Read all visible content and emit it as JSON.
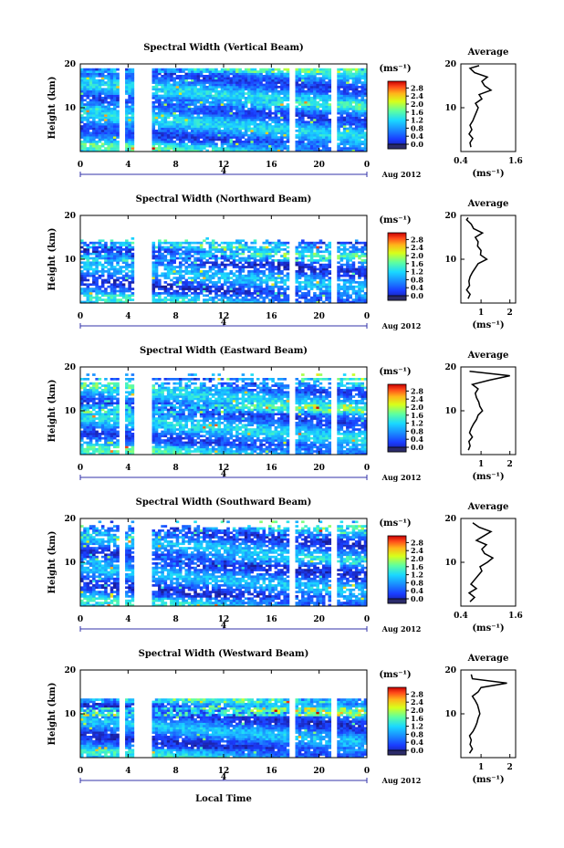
{
  "figure": {
    "date_label": "Aug 2012",
    "xlabel": "Local Time",
    "ylabel": "Height (km)",
    "average_title": "Average",
    "cbar_unit_label": "(ms⁻¹)",
    "avg_unit_label": "(ms⁻¹)",
    "day_mark_label": "4"
  },
  "chart_data": [
    {
      "type": "heatmap",
      "title": "Spectral Width (Vertical Beam)",
      "x_ticks": [
        "0",
        "4",
        "8",
        "12",
        "16",
        "20",
        "0"
      ],
      "y_ticks": [
        "10",
        "20"
      ],
      "colorbar_ticks": [
        "0.0",
        "0.4",
        "0.8",
        "1.2",
        "1.6",
        "2.0",
        "2.4",
        "2.8"
      ],
      "clim": [
        0.0,
        3.0
      ],
      "top_km": 19.2,
      "top_ragged": false,
      "base": 0.25,
      "speckle": 0.06,
      "vert_band": 0.05,
      "gaps": [
        [
          3.3,
          3.7
        ],
        [
          4.6,
          6.1
        ],
        [
          17.6,
          18.1
        ],
        [
          21.1,
          21.5
        ]
      ],
      "average": {
        "xlim": [
          0.4,
          1.6
        ],
        "x_ticks": [
          "0.4",
          "1.6"
        ],
        "y_ticks": [
          "10",
          "20"
        ],
        "profile": [
          [
            0.62,
            1
          ],
          [
            0.6,
            2
          ],
          [
            0.66,
            3
          ],
          [
            0.58,
            4
          ],
          [
            0.64,
            5
          ],
          [
            0.6,
            6
          ],
          [
            0.66,
            7
          ],
          [
            0.7,
            8
          ],
          [
            0.74,
            9
          ],
          [
            0.78,
            10
          ],
          [
            0.72,
            11
          ],
          [
            0.86,
            12
          ],
          [
            0.8,
            13
          ],
          [
            1.06,
            14
          ],
          [
            0.92,
            15
          ],
          [
            0.86,
            16
          ],
          [
            0.98,
            17
          ],
          [
            0.7,
            18
          ],
          [
            0.6,
            19
          ],
          [
            0.8,
            19.6
          ]
        ]
      }
    },
    {
      "type": "heatmap",
      "title": "Spectral Width (Northward Beam)",
      "x_ticks": [
        "0",
        "4",
        "8",
        "12",
        "16",
        "20",
        "0"
      ],
      "y_ticks": [
        "10",
        "20"
      ],
      "colorbar_ticks": [
        "0.0",
        "0.4",
        "0.8",
        "1.2",
        "1.6",
        "2.0",
        "2.4",
        "2.8"
      ],
      "clim": [
        0.0,
        3.0
      ],
      "top_km": 14.5,
      "top_ragged": true,
      "base": 0.2,
      "speckle": 0.22,
      "vert_band": 0.1,
      "gaps": [
        [
          4.6,
          6.1
        ],
        [
          17.6,
          18.1
        ],
        [
          21.1,
          21.5
        ]
      ],
      "average": {
        "xlim": [
          0.3,
          2.2
        ],
        "x_ticks": [
          "1",
          "2"
        ],
        "y_ticks": [
          "10",
          "20"
        ],
        "profile": [
          [
            0.55,
            1
          ],
          [
            0.62,
            2
          ],
          [
            0.5,
            3
          ],
          [
            0.6,
            4
          ],
          [
            0.58,
            5
          ],
          [
            0.62,
            6
          ],
          [
            0.7,
            7
          ],
          [
            0.8,
            8
          ],
          [
            0.9,
            9
          ],
          [
            1.2,
            10
          ],
          [
            0.98,
            11
          ],
          [
            1.0,
            12
          ],
          [
            0.88,
            13
          ],
          [
            0.9,
            14
          ],
          [
            0.8,
            15
          ],
          [
            1.05,
            16
          ],
          [
            0.74,
            17
          ],
          [
            0.66,
            18
          ],
          [
            0.5,
            19
          ],
          [
            0.55,
            19.5
          ]
        ]
      }
    },
    {
      "type": "heatmap",
      "title": "Spectral Width (Eastward Beam)",
      "x_ticks": [
        "0",
        "4",
        "8",
        "12",
        "16",
        "20",
        "0"
      ],
      "y_ticks": [
        "10",
        "20"
      ],
      "colorbar_ticks": [
        "0.0",
        "0.4",
        "0.8",
        "1.2",
        "1.6",
        "2.0",
        "2.4",
        "2.8"
      ],
      "clim": [
        0.0,
        3.0
      ],
      "top_km": 17.3,
      "top_ragged": true,
      "base": 0.25,
      "speckle": 0.12,
      "vert_band": 0.1,
      "gaps": [
        [
          3.3,
          3.7
        ],
        [
          4.6,
          6.1
        ],
        [
          17.6,
          18.1
        ],
        [
          21.1,
          21.5
        ]
      ],
      "average": {
        "xlim": [
          0.3,
          2.2
        ],
        "x_ticks": [
          "1",
          "2"
        ],
        "y_ticks": [
          "10",
          "20"
        ],
        "profile": [
          [
            0.56,
            1
          ],
          [
            0.62,
            2
          ],
          [
            0.58,
            3
          ],
          [
            0.7,
            4
          ],
          [
            0.6,
            5
          ],
          [
            0.66,
            6
          ],
          [
            0.74,
            7
          ],
          [
            0.84,
            8
          ],
          [
            0.9,
            9
          ],
          [
            1.05,
            10
          ],
          [
            0.96,
            11
          ],
          [
            0.92,
            12
          ],
          [
            0.84,
            13
          ],
          [
            0.8,
            14
          ],
          [
            0.9,
            15
          ],
          [
            0.7,
            16
          ],
          [
            1.3,
            17
          ],
          [
            2.0,
            18
          ],
          [
            0.6,
            19
          ]
        ]
      }
    },
    {
      "type": "heatmap",
      "title": "Spectral Width (Southward Beam)",
      "x_ticks": [
        "0",
        "4",
        "8",
        "12",
        "16",
        "20",
        "0"
      ],
      "y_ticks": [
        "10",
        "20"
      ],
      "colorbar_ticks": [
        "0.0",
        "0.4",
        "0.8",
        "1.2",
        "1.6",
        "2.0",
        "2.4",
        "2.8"
      ],
      "clim": [
        0.0,
        3.0
      ],
      "top_km": 18.0,
      "top_ragged": true,
      "base": 0.2,
      "speckle": 0.16,
      "vert_band": 0.05,
      "gaps": [
        [
          3.3,
          3.7
        ],
        [
          4.6,
          6.1
        ],
        [
          17.6,
          18.1
        ],
        [
          21.1,
          21.5
        ]
      ],
      "average": {
        "xlim": [
          0.4,
          1.6
        ],
        "x_ticks": [
          "0.4",
          "1.6"
        ],
        "y_ticks": [
          "10",
          "20"
        ],
        "profile": [
          [
            0.6,
            1
          ],
          [
            0.7,
            2
          ],
          [
            0.58,
            3
          ],
          [
            0.74,
            4
          ],
          [
            0.62,
            5
          ],
          [
            0.7,
            6
          ],
          [
            0.78,
            7
          ],
          [
            0.86,
            8
          ],
          [
            0.82,
            9
          ],
          [
            0.98,
            10
          ],
          [
            1.1,
            11
          ],
          [
            0.92,
            12
          ],
          [
            0.86,
            13
          ],
          [
            0.96,
            14
          ],
          [
            0.74,
            15
          ],
          [
            0.9,
            16
          ],
          [
            1.06,
            17
          ],
          [
            0.8,
            18
          ],
          [
            0.66,
            19
          ]
        ]
      }
    },
    {
      "type": "heatmap",
      "title": "Spectral Width (Westward Beam)",
      "x_ticks": [
        "0",
        "4",
        "8",
        "12",
        "16",
        "20",
        "0"
      ],
      "y_ticks": [
        "10",
        "20"
      ],
      "colorbar_ticks": [
        "0.0",
        "0.4",
        "0.8",
        "1.2",
        "1.6",
        "2.0",
        "2.4",
        "2.8"
      ],
      "clim": [
        0.0,
        3.0
      ],
      "top_km": 13.5,
      "top_ragged": false,
      "base": 0.2,
      "speckle": 0.05,
      "vert_band": 0.15,
      "gaps": [
        [
          3.3,
          3.7
        ],
        [
          4.6,
          6.1
        ],
        [
          17.6,
          18.1
        ],
        [
          21.1,
          21.5
        ]
      ],
      "average": {
        "xlim": [
          0.3,
          2.2
        ],
        "x_ticks": [
          "1",
          "2"
        ],
        "y_ticks": [
          "10",
          "20"
        ],
        "profile": [
          [
            0.6,
            1
          ],
          [
            0.7,
            2
          ],
          [
            0.62,
            3
          ],
          [
            0.66,
            4
          ],
          [
            0.6,
            5
          ],
          [
            0.72,
            6
          ],
          [
            0.8,
            7
          ],
          [
            0.86,
            8
          ],
          [
            0.9,
            9
          ],
          [
            0.96,
            10
          ],
          [
            0.92,
            11
          ],
          [
            0.88,
            12
          ],
          [
            0.8,
            13
          ],
          [
            0.7,
            14
          ],
          [
            0.9,
            15
          ],
          [
            1.0,
            16
          ],
          [
            1.9,
            17
          ],
          [
            0.7,
            18
          ],
          [
            0.66,
            19
          ]
        ]
      }
    }
  ]
}
